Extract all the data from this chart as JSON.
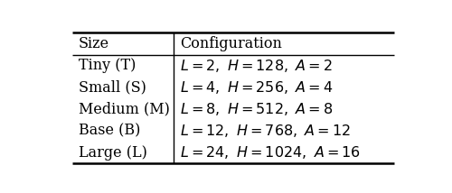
{
  "header": [
    "Size",
    "Configuration"
  ],
  "rows": [
    [
      "Tiny (T)",
      "$L = 2,\\ H = 128,\\ A = 2$"
    ],
    [
      "Small (S)",
      "$L = 4,\\ H = 256,\\ A = 4$"
    ],
    [
      "Medium (M)",
      "$L = 8,\\ H = 512,\\ A = 8$"
    ],
    [
      "Base (B)",
      "$L = 12,\\ H = 768,\\ A = 12$"
    ],
    [
      "Large (L)",
      "$L = 24,\\ H = 1024,\\ A = 16$"
    ]
  ],
  "col_split": 0.315,
  "header_fontsize": 11.5,
  "row_fontsize": 11.5,
  "bg_color": "#ffffff",
  "line_color": "#000000",
  "text_color": "#000000",
  "thick_lw": 1.8,
  "header_sep_lw": 1.0,
  "col_sep_lw": 1.0
}
